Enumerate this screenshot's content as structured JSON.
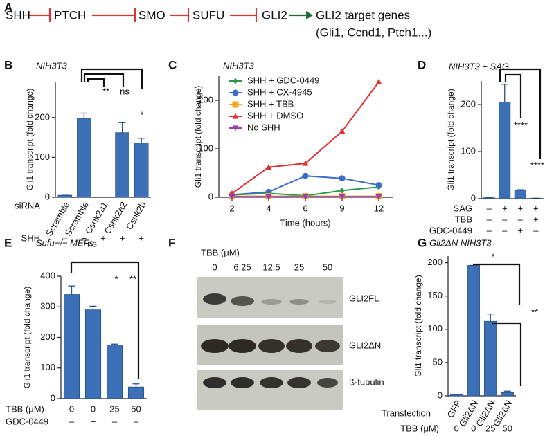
{
  "panel_labels": [
    "A",
    "B",
    "C",
    "D",
    "E",
    "F",
    "G"
  ],
  "pathway": {
    "nodes": [
      "SHH",
      "PTCH",
      "SMO",
      "SUFU",
      "GLI2",
      "GLI2 target genes"
    ],
    "target_examples": "(Gli1, Ccnd1, Ptch1...)"
  },
  "chart_data": [
    {
      "type": "bar",
      "title": "NIH3T3",
      "y_label": "Gli1 transcript (fold change)",
      "category_title": "siRNA",
      "categories": [
        "Scramble",
        "Scramble",
        "Csnk2a1",
        "Csnk2a2",
        "Csnk2b"
      ],
      "values": [
        5,
        198,
        0,
        162,
        136
      ],
      "errors": [
        0,
        13,
        0,
        25,
        12
      ],
      "significance": [
        null,
        null,
        "**",
        "ns",
        "*"
      ],
      "rows": [
        {
          "label": "SHH",
          "values": [
            "–",
            "+",
            "+",
            "+",
            "+"
          ]
        }
      ],
      "color": "#3b6fb6",
      "ylim": [
        0,
        290
      ],
      "yticks": [
        0,
        100,
        200
      ]
    },
    {
      "type": "line",
      "title": "NIH3T3",
      "y_label": "Gli1 transcript (fold change)",
      "x_label": "Time (hours)",
      "categories": [
        "2",
        "4",
        "6",
        "9",
        "12"
      ],
      "series": [
        {
          "name": "SHH + GDC-0449",
          "color": "#2a9a4a",
          "marker": "diamond",
          "values": [
            5,
            8,
            3,
            14,
            21
          ]
        },
        {
          "name": "SHH + CX-4945",
          "color": "#3a6fc4",
          "marker": "circle",
          "values": [
            5,
            11,
            44,
            39,
            25
          ]
        },
        {
          "name": "SHH + TBB",
          "color": "#f5a623",
          "marker": "square",
          "values": [
            2,
            2,
            2,
            2,
            2
          ]
        },
        {
          "name": "SHH + DMSO",
          "color": "#e03030",
          "marker": "triangle",
          "values": [
            8,
            62,
            70,
            136,
            238
          ]
        },
        {
          "name": "No SHH",
          "color": "#9b3fb0",
          "marker": "triangle-down",
          "values": [
            1,
            1,
            1,
            1,
            1
          ]
        }
      ],
      "ylim": [
        0,
        250
      ],
      "yticks": [
        0,
        100,
        200
      ]
    },
    {
      "type": "bar",
      "title": "NIH3T3 + SAG",
      "y_label": "Gli1 transcript (fold change)",
      "values": [
        2,
        205,
        18,
        1
      ],
      "errors": [
        0,
        38,
        1,
        0
      ],
      "significance": [
        null,
        null,
        "****",
        "****"
      ],
      "rows": [
        {
          "label": "SAG",
          "values": [
            "–",
            "+",
            "+",
            "+"
          ]
        },
        {
          "label": "TBB",
          "values": [
            "–",
            "–",
            "–",
            "+"
          ]
        },
        {
          "label": "GDC-0449",
          "values": [
            "–",
            "–",
            "+",
            "–"
          ]
        }
      ],
      "color": "#3b6fb6",
      "ylim": [
        0,
        250
      ],
      "yticks": [
        0,
        100,
        200
      ]
    },
    {
      "type": "bar",
      "title": "Sufu−/− MEFs",
      "y_label": "Gli1 transcript (fold change)",
      "values": [
        340,
        290,
        175,
        38
      ],
      "errors": [
        28,
        12,
        3,
        10
      ],
      "significance": [
        null,
        "ns",
        "*",
        "**"
      ],
      "rows": [
        {
          "label": "TBB (μM)",
          "values": [
            0,
            0,
            25,
            50
          ]
        },
        {
          "label": "GDC-0449",
          "values": [
            "–",
            "+",
            "–",
            "–"
          ]
        }
      ],
      "color": "#3b6fb6",
      "ylim": [
        0,
        400
      ],
      "yticks": [
        0,
        100,
        200,
        300,
        400
      ]
    },
    {
      "type": "bar",
      "title": "Gli2ΔN NIH3T3",
      "y_label": "Gli1 transcript (fold change)",
      "category_title": "Transfection",
      "categories": [
        "GFP",
        "Gli2ΔN",
        "Gli2ΔN",
        "Gli2ΔN"
      ],
      "values": [
        2,
        196,
        112,
        5
      ],
      "errors": [
        0,
        0,
        11,
        2
      ],
      "significance": [
        null,
        null,
        "*",
        "**"
      ],
      "rows": [
        {
          "label": "TBB (μM)",
          "values": [
            0,
            0,
            25,
            50
          ]
        }
      ],
      "color": "#3b6fb6",
      "ylim": [
        0,
        210
      ],
      "yticks": [
        0,
        50,
        100,
        150,
        200
      ]
    }
  ],
  "blot": {
    "treatment_label": "TBB (μM)",
    "concentrations": [
      0,
      6.25,
      12.5,
      25,
      50
    ],
    "bands": [
      "GLI2FL",
      "GLI2ΔN",
      "ß-tubulin"
    ]
  }
}
